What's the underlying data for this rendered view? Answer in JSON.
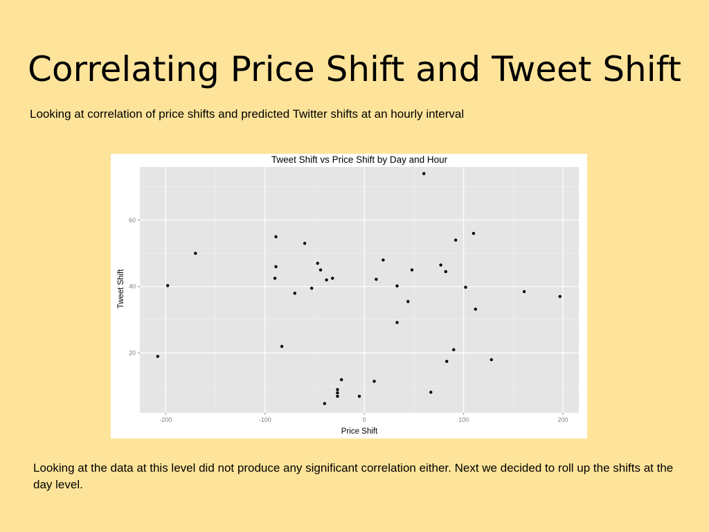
{
  "slide": {
    "title": "Correlating Price Shift and Tweet Shift",
    "subtitle": "Looking at correlation of price shifts and predicted Twitter shifts at an hourly interval",
    "conclusion": "Looking at the data at this level did not produce any significant correlation either. Next we decided to roll up the shifts at the day level."
  },
  "colors": {
    "background": "#fee49a",
    "panel": "#e5e5e5",
    "grid_major": "#ffffff",
    "grid_minor": "#f2f2f2",
    "point": "#000000"
  },
  "chart_data": {
    "type": "scatter",
    "title": "Tweet Shift vs Price Shift by Day and Hour",
    "xlabel": "Price Shift",
    "ylabel": "Tweet Shift",
    "xlim": [
      -226,
      216
    ],
    "ylim": [
      2,
      76
    ],
    "xticks": [
      -200,
      -100,
      0,
      100,
      200
    ],
    "yticks": [
      20,
      40,
      60
    ],
    "grid": true,
    "legend": "none",
    "points": [
      {
        "x": -208,
        "y": 19
      },
      {
        "x": -198,
        "y": 40.3
      },
      {
        "x": -170,
        "y": 50
      },
      {
        "x": -89,
        "y": 55
      },
      {
        "x": -89,
        "y": 46
      },
      {
        "x": -90,
        "y": 42.5
      },
      {
        "x": -83,
        "y": 22
      },
      {
        "x": -70,
        "y": 38
      },
      {
        "x": -60,
        "y": 53
      },
      {
        "x": -53,
        "y": 39.5
      },
      {
        "x": -47,
        "y": 47
      },
      {
        "x": -44,
        "y": 45
      },
      {
        "x": -38,
        "y": 42
      },
      {
        "x": -32,
        "y": 42.5
      },
      {
        "x": -40,
        "y": 4.8
      },
      {
        "x": -27,
        "y": 9
      },
      {
        "x": -27,
        "y": 8
      },
      {
        "x": -27,
        "y": 7
      },
      {
        "x": -23,
        "y": 12
      },
      {
        "x": -5,
        "y": 7
      },
      {
        "x": 10,
        "y": 11.5
      },
      {
        "x": 12,
        "y": 42.2
      },
      {
        "x": 19,
        "y": 48
      },
      {
        "x": 33,
        "y": 40.2
      },
      {
        "x": 33,
        "y": 29.2
      },
      {
        "x": 44,
        "y": 35.5
      },
      {
        "x": 48,
        "y": 45
      },
      {
        "x": 60,
        "y": 74
      },
      {
        "x": 67,
        "y": 8.2
      },
      {
        "x": 77,
        "y": 46.5
      },
      {
        "x": 82,
        "y": 44.5
      },
      {
        "x": 83,
        "y": 17.5
      },
      {
        "x": 90,
        "y": 21
      },
      {
        "x": 92,
        "y": 54
      },
      {
        "x": 102,
        "y": 39.8
      },
      {
        "x": 110,
        "y": 56
      },
      {
        "x": 112,
        "y": 33.2
      },
      {
        "x": 128,
        "y": 18
      },
      {
        "x": 161,
        "y": 38.5
      },
      {
        "x": 197,
        "y": 37
      }
    ]
  }
}
